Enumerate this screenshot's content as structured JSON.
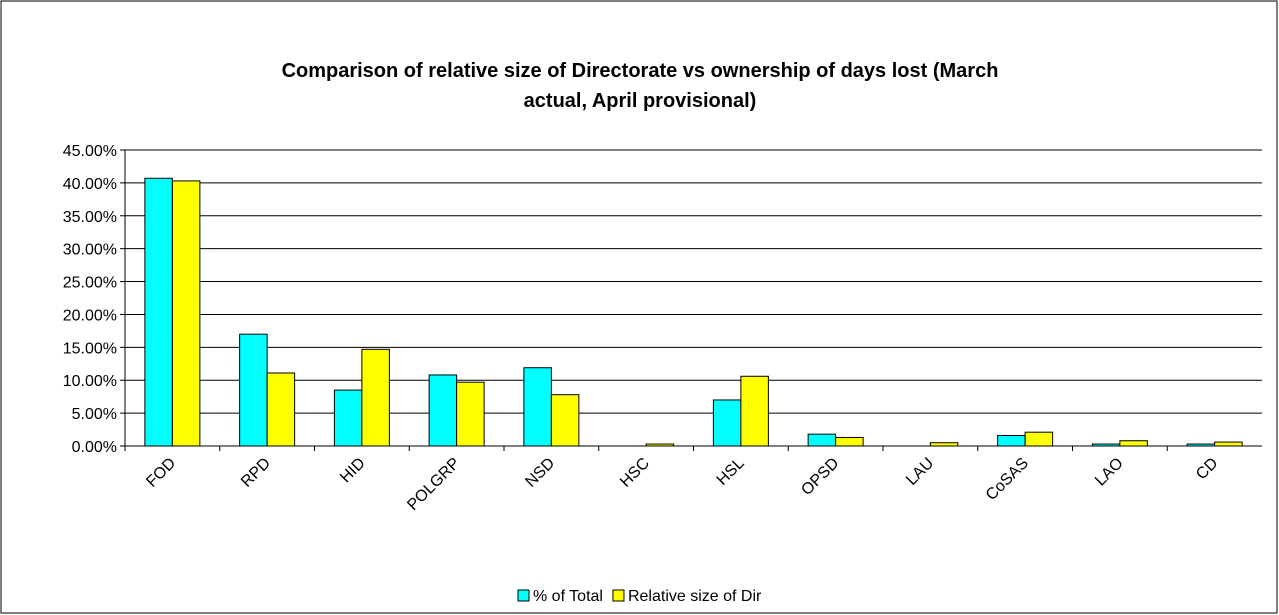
{
  "chart_data": {
    "type": "bar",
    "title": "Comparison of relative size of Directorate vs ownership of days lost (March actual, April provisional)",
    "categories": [
      "FOD",
      "RPD",
      "HID",
      "POLGRP",
      "NSD",
      "HSC",
      "HSL",
      "OPSD",
      "LAU",
      "CoSAS",
      "LAO",
      "CD"
    ],
    "series": [
      {
        "name": "% of Total",
        "color": "#00ffff",
        "values": [
          40.7,
          17.0,
          8.5,
          10.8,
          11.9,
          0,
          7.0,
          1.8,
          0,
          1.6,
          0.3,
          0.3
        ]
      },
      {
        "name": "Relative size of Dir",
        "color": "#ffff00",
        "values": [
          40.3,
          11.1,
          14.7,
          9.7,
          7.8,
          0.3,
          10.6,
          1.3,
          0.5,
          2.1,
          0.8,
          0.6
        ]
      }
    ],
    "ylim": [
      0,
      45
    ],
    "yticks": [
      {
        "value": 0,
        "label": "0.00%"
      },
      {
        "value": 5,
        "label": "5.00%"
      },
      {
        "value": 10,
        "label": "10.00%"
      },
      {
        "value": 15,
        "label": "15.00%"
      },
      {
        "value": 20,
        "label": "20.00%"
      },
      {
        "value": 25,
        "label": "25.00%"
      },
      {
        "value": 30,
        "label": "30.00%"
      },
      {
        "value": 35,
        "label": "35.00%"
      },
      {
        "value": 40,
        "label": "40.00%"
      },
      {
        "value": 45,
        "label": "45.00%"
      }
    ],
    "grid": true,
    "legend": "bottom"
  }
}
